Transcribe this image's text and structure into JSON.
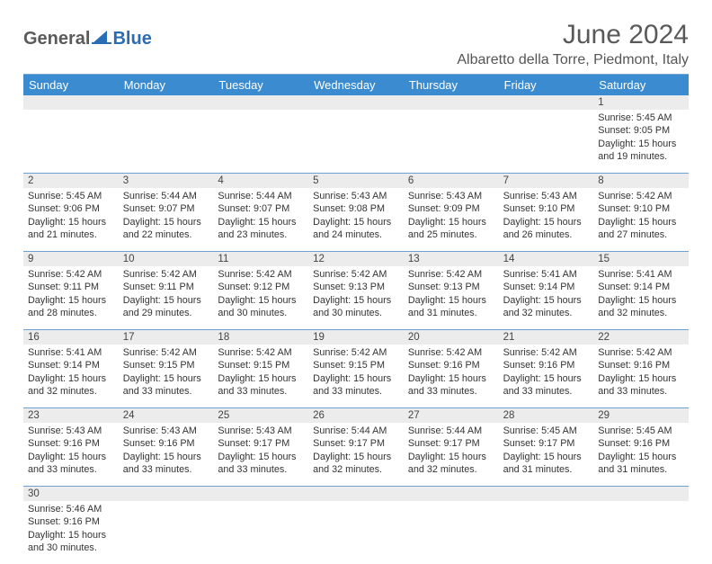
{
  "logo": {
    "text1": "General",
    "text2": "Blue"
  },
  "title": "June 2024",
  "location": "Albaretto della Torre, Piedmont, Italy",
  "header_bg": "#3b8bd0",
  "alt_row_bg": "#ececec",
  "cell_border": "#6ea0d4",
  "weekdays": [
    "Sunday",
    "Monday",
    "Tuesday",
    "Wednesday",
    "Thursday",
    "Friday",
    "Saturday"
  ],
  "weeks": [
    [
      null,
      null,
      null,
      null,
      null,
      null,
      {
        "n": "1",
        "rise": "5:45 AM",
        "set": "9:05 PM",
        "dh": "15",
        "dm": "19"
      }
    ],
    [
      {
        "n": "2",
        "rise": "5:45 AM",
        "set": "9:06 PM",
        "dh": "15",
        "dm": "21"
      },
      {
        "n": "3",
        "rise": "5:44 AM",
        "set": "9:07 PM",
        "dh": "15",
        "dm": "22"
      },
      {
        "n": "4",
        "rise": "5:44 AM",
        "set": "9:07 PM",
        "dh": "15",
        "dm": "23"
      },
      {
        "n": "5",
        "rise": "5:43 AM",
        "set": "9:08 PM",
        "dh": "15",
        "dm": "24"
      },
      {
        "n": "6",
        "rise": "5:43 AM",
        "set": "9:09 PM",
        "dh": "15",
        "dm": "25"
      },
      {
        "n": "7",
        "rise": "5:43 AM",
        "set": "9:10 PM",
        "dh": "15",
        "dm": "26"
      },
      {
        "n": "8",
        "rise": "5:42 AM",
        "set": "9:10 PM",
        "dh": "15",
        "dm": "27"
      }
    ],
    [
      {
        "n": "9",
        "rise": "5:42 AM",
        "set": "9:11 PM",
        "dh": "15",
        "dm": "28"
      },
      {
        "n": "10",
        "rise": "5:42 AM",
        "set": "9:11 PM",
        "dh": "15",
        "dm": "29"
      },
      {
        "n": "11",
        "rise": "5:42 AM",
        "set": "9:12 PM",
        "dh": "15",
        "dm": "30"
      },
      {
        "n": "12",
        "rise": "5:42 AM",
        "set": "9:13 PM",
        "dh": "15",
        "dm": "30"
      },
      {
        "n": "13",
        "rise": "5:42 AM",
        "set": "9:13 PM",
        "dh": "15",
        "dm": "31"
      },
      {
        "n": "14",
        "rise": "5:41 AM",
        "set": "9:14 PM",
        "dh": "15",
        "dm": "32"
      },
      {
        "n": "15",
        "rise": "5:41 AM",
        "set": "9:14 PM",
        "dh": "15",
        "dm": "32"
      }
    ],
    [
      {
        "n": "16",
        "rise": "5:41 AM",
        "set": "9:14 PM",
        "dh": "15",
        "dm": "32"
      },
      {
        "n": "17",
        "rise": "5:42 AM",
        "set": "9:15 PM",
        "dh": "15",
        "dm": "33"
      },
      {
        "n": "18",
        "rise": "5:42 AM",
        "set": "9:15 PM",
        "dh": "15",
        "dm": "33"
      },
      {
        "n": "19",
        "rise": "5:42 AM",
        "set": "9:15 PM",
        "dh": "15",
        "dm": "33"
      },
      {
        "n": "20",
        "rise": "5:42 AM",
        "set": "9:16 PM",
        "dh": "15",
        "dm": "33"
      },
      {
        "n": "21",
        "rise": "5:42 AM",
        "set": "9:16 PM",
        "dh": "15",
        "dm": "33"
      },
      {
        "n": "22",
        "rise": "5:42 AM",
        "set": "9:16 PM",
        "dh": "15",
        "dm": "33"
      }
    ],
    [
      {
        "n": "23",
        "rise": "5:43 AM",
        "set": "9:16 PM",
        "dh": "15",
        "dm": "33"
      },
      {
        "n": "24",
        "rise": "5:43 AM",
        "set": "9:16 PM",
        "dh": "15",
        "dm": "33"
      },
      {
        "n": "25",
        "rise": "5:43 AM",
        "set": "9:17 PM",
        "dh": "15",
        "dm": "33"
      },
      {
        "n": "26",
        "rise": "5:44 AM",
        "set": "9:17 PM",
        "dh": "15",
        "dm": "32"
      },
      {
        "n": "27",
        "rise": "5:44 AM",
        "set": "9:17 PM",
        "dh": "15",
        "dm": "32"
      },
      {
        "n": "28",
        "rise": "5:45 AM",
        "set": "9:17 PM",
        "dh": "15",
        "dm": "31"
      },
      {
        "n": "29",
        "rise": "5:45 AM",
        "set": "9:16 PM",
        "dh": "15",
        "dm": "31"
      }
    ],
    [
      {
        "n": "30",
        "rise": "5:46 AM",
        "set": "9:16 PM",
        "dh": "15",
        "dm": "30"
      },
      null,
      null,
      null,
      null,
      null,
      null
    ]
  ],
  "labels": {
    "sunrise": "Sunrise:",
    "sunset": "Sunset:",
    "daylight_pre": "Daylight:",
    "hours_word": "hours",
    "and_word": "and",
    "minutes_word": "minutes."
  }
}
